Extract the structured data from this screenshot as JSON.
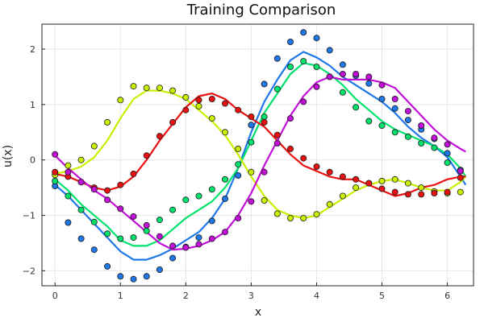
{
  "chart_data": {
    "type": "scatter",
    "title": "Training Comparison",
    "xlabel": "x",
    "ylabel": "u(x)",
    "xlim": [
      -0.2,
      6.4
    ],
    "ylim": [
      -2.27,
      2.45
    ],
    "xticks": [
      0,
      1,
      2,
      3,
      4,
      5,
      6
    ],
    "yticks": [
      -2,
      -1,
      0,
      1,
      2
    ],
    "grid": true,
    "legend": "none",
    "scatter_x": [
      0.0,
      0.2,
      0.4,
      0.6,
      0.8,
      1.0,
      1.2,
      1.4,
      1.6,
      1.8,
      2.0,
      2.2,
      2.4,
      2.6,
      2.8,
      3.0,
      3.2,
      3.4,
      3.6,
      3.8,
      4.0,
      4.2,
      4.4,
      4.6,
      4.8,
      5.0,
      5.2,
      5.4,
      5.6,
      5.8,
      6.0,
      6.2
    ],
    "curve_x": [
      0.0,
      0.2,
      0.4,
      0.6,
      0.8,
      1.0,
      1.2,
      1.4,
      1.6,
      1.8,
      2.0,
      2.2,
      2.4,
      2.6,
      2.8,
      3.0,
      3.2,
      3.4,
      3.6,
      3.8,
      4.0,
      4.2,
      4.4,
      4.6,
      4.8,
      5.0,
      5.2,
      5.4,
      5.6,
      5.8,
      6.0,
      6.2,
      6.28
    ],
    "series": [
      {
        "color": "#1f77e8",
        "points": [
          -0.47,
          -1.13,
          -1.42,
          -1.62,
          -1.92,
          -2.1,
          -2.15,
          -2.1,
          -1.98,
          -1.77,
          -1.57,
          -1.4,
          -1.1,
          -0.7,
          -0.28,
          0.63,
          1.37,
          1.83,
          2.13,
          2.3,
          2.2,
          1.98,
          1.72,
          1.52,
          1.38,
          1.1,
          0.93,
          0.72,
          0.55,
          0.38,
          0.12,
          -0.18
        ],
        "curve": [
          -0.45,
          -0.65,
          -0.9,
          -1.15,
          -1.4,
          -1.65,
          -1.8,
          -1.8,
          -1.72,
          -1.6,
          -1.45,
          -1.3,
          -1.05,
          -0.7,
          -0.15,
          0.5,
          1.05,
          1.45,
          1.8,
          1.95,
          1.85,
          1.7,
          1.5,
          1.35,
          1.2,
          1.05,
          0.85,
          0.6,
          0.4,
          0.25,
          0.05,
          -0.3,
          -0.45
        ]
      },
      {
        "color": "#00e26b",
        "points": [
          -0.38,
          -0.65,
          -0.9,
          -1.12,
          -1.33,
          -1.42,
          -1.4,
          -1.28,
          -1.08,
          -0.9,
          -0.72,
          -0.65,
          -0.53,
          -0.35,
          -0.08,
          0.32,
          0.78,
          1.28,
          1.68,
          1.78,
          1.68,
          1.5,
          1.22,
          0.95,
          0.7,
          0.62,
          0.5,
          0.42,
          0.3,
          0.22,
          -0.05,
          -0.2
        ],
        "curve": [
          -0.35,
          -0.55,
          -0.8,
          -1.0,
          -1.2,
          -1.45,
          -1.55,
          -1.55,
          -1.45,
          -1.25,
          -1.05,
          -0.9,
          -0.75,
          -0.5,
          -0.15,
          0.35,
          0.85,
          1.2,
          1.55,
          1.75,
          1.7,
          1.55,
          1.35,
          1.1,
          0.9,
          0.7,
          0.55,
          0.45,
          0.35,
          0.25,
          0.1,
          -0.15,
          -0.3
        ]
      },
      {
        "color": "#c8f000",
        "points": [
          -0.27,
          -0.1,
          0.0,
          0.25,
          0.68,
          1.08,
          1.33,
          1.3,
          1.3,
          1.25,
          1.13,
          0.97,
          0.75,
          0.5,
          0.2,
          -0.22,
          -0.73,
          -0.97,
          -1.05,
          -1.05,
          -0.98,
          -0.8,
          -0.65,
          -0.5,
          -0.42,
          -0.38,
          -0.35,
          -0.42,
          -0.5,
          -0.57,
          -0.6,
          -0.58
        ],
        "curve": [
          -0.25,
          -0.2,
          -0.12,
          0.05,
          0.35,
          0.75,
          1.1,
          1.25,
          1.25,
          1.2,
          1.1,
          0.9,
          0.7,
          0.45,
          0.1,
          -0.3,
          -0.65,
          -0.9,
          -1.0,
          -1.05,
          -1.0,
          -0.85,
          -0.7,
          -0.55,
          -0.45,
          -0.38,
          -0.35,
          -0.42,
          -0.5,
          -0.55,
          -0.55,
          -0.4,
          -0.3
        ]
      },
      {
        "color": "#e81010",
        "points": [
          -0.22,
          -0.3,
          -0.4,
          -0.5,
          -0.55,
          -0.45,
          -0.25,
          0.08,
          0.43,
          0.68,
          0.9,
          1.08,
          1.1,
          1.02,
          0.9,
          0.78,
          0.68,
          0.45,
          0.2,
          0.03,
          -0.12,
          -0.22,
          -0.3,
          -0.35,
          -0.42,
          -0.52,
          -0.58,
          -0.62,
          -0.62,
          -0.6,
          -0.58,
          -0.32
        ],
        "curve": [
          -0.25,
          -0.3,
          -0.4,
          -0.5,
          -0.55,
          -0.48,
          -0.3,
          0.0,
          0.35,
          0.65,
          0.95,
          1.15,
          1.2,
          1.1,
          0.9,
          0.75,
          0.6,
          0.35,
          0.1,
          -0.1,
          -0.2,
          -0.3,
          -0.35,
          -0.35,
          -0.45,
          -0.55,
          -0.65,
          -0.6,
          -0.5,
          -0.45,
          -0.35,
          -0.3,
          -0.3
        ]
      },
      {
        "color": "#c20fd8",
        "points": [
          0.1,
          -0.22,
          -0.4,
          -0.53,
          -0.72,
          -0.88,
          -1.02,
          -1.18,
          -1.38,
          -1.55,
          -1.58,
          -1.52,
          -1.42,
          -1.3,
          -1.05,
          -0.75,
          -0.22,
          0.3,
          0.75,
          1.05,
          1.32,
          1.5,
          1.55,
          1.55,
          1.5,
          1.35,
          1.1,
          0.88,
          0.62,
          0.4,
          0.28,
          -0.2
        ],
        "curve": [
          0.08,
          -0.15,
          -0.35,
          -0.55,
          -0.7,
          -0.9,
          -1.1,
          -1.3,
          -1.5,
          -1.62,
          -1.6,
          -1.55,
          -1.45,
          -1.3,
          -1.0,
          -0.6,
          -0.1,
          0.35,
          0.8,
          1.15,
          1.4,
          1.5,
          1.45,
          1.45,
          1.45,
          1.4,
          1.3,
          1.05,
          0.8,
          0.55,
          0.35,
          0.2,
          0.15
        ]
      }
    ]
  }
}
